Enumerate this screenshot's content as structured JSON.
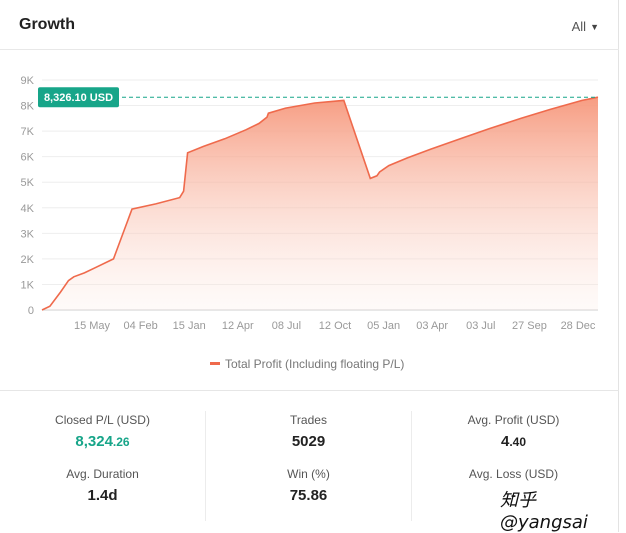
{
  "header": {
    "title": "Growth",
    "filter_label": "All"
  },
  "chart_data": {
    "type": "area",
    "series": [
      {
        "name": "Total Profit (Including floating P/L)",
        "x": [
          0,
          0.3,
          0.7,
          1.0,
          1.2,
          1.6,
          2.0,
          2.7,
          3.4,
          4.3,
          5.2,
          5.35,
          5.5,
          6.1,
          6.9,
          7.7,
          8.2,
          8.5,
          8.55,
          9.2,
          10.3,
          11.4,
          12.4,
          12.65,
          12.75,
          13.1,
          13.8,
          14.7,
          15.8,
          16.9,
          18.1,
          19.2,
          20.4,
          21.0
        ],
        "values": [
          0,
          150,
          700,
          1150,
          1300,
          1450,
          1650,
          2000,
          3950,
          4150,
          4400,
          4650,
          6150,
          6400,
          6700,
          7050,
          7300,
          7550,
          7700,
          7900,
          8100,
          8200,
          5150,
          5250,
          5400,
          5650,
          5950,
          6300,
          6700,
          7100,
          7500,
          7850,
          8200,
          8326.1
        ]
      }
    ],
    "x_tick_labels": [
      "15 May",
      "04 Feb",
      "15 Jan",
      "12 Apr",
      "08 Jul",
      "12 Oct",
      "05 Jan",
      "03 Apr",
      "03 Jul",
      "27 Sep",
      "28 Dec"
    ],
    "y_tick_labels": [
      "0",
      "1K",
      "2K",
      "3K",
      "4K",
      "5K",
      "6K",
      "7K",
      "8K",
      "9K"
    ],
    "ylim": [
      0,
      9000
    ],
    "grid": true,
    "legend_position": "bottom",
    "current_value_label": "8,326.10 USD",
    "current_value": 8326.1,
    "colors": {
      "line": "#ef6a4c",
      "fill_top": "#f7a086",
      "label_bg": "#17a589",
      "dash": "#17a589"
    }
  },
  "stats": {
    "closed_pl": {
      "label": "Closed P/L (USD)",
      "value_main": "8,324",
      "value_cents": ".26"
    },
    "trades": {
      "label": "Trades",
      "value": "5029"
    },
    "avg_profit": {
      "label": "Avg. Profit (USD)",
      "value_main": "4",
      "value_cents": ".40"
    },
    "avg_duration": {
      "label": "Avg. Duration",
      "value": "1.4d"
    },
    "win": {
      "label": "Win (%)",
      "value": "75.86"
    },
    "avg_loss": {
      "label": "Avg. Loss (USD)",
      "value": "-"
    }
  },
  "watermark": "知乎 @yangsai"
}
